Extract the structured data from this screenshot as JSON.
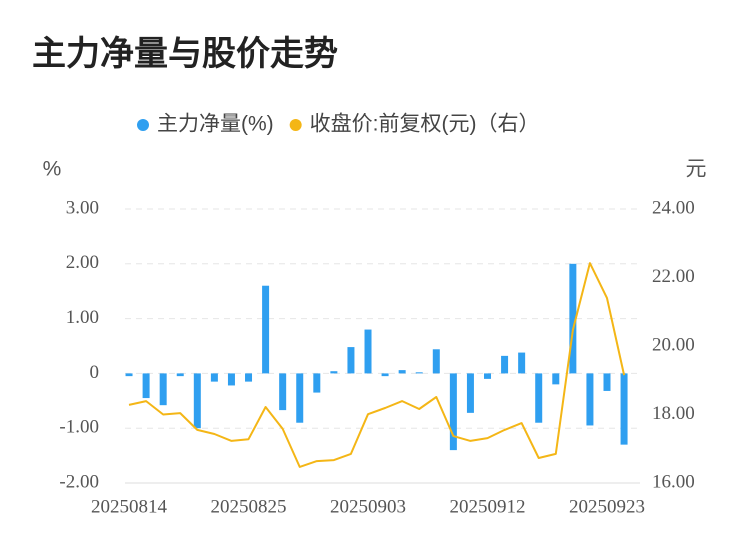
{
  "chart_data": {
    "type": "bar",
    "title": "主力净量与股价走势",
    "ylabel": "%",
    "y2label": "元",
    "categories": [
      "20250814",
      null,
      null,
      null,
      null,
      null,
      null,
      "20250825",
      null,
      null,
      null,
      null,
      null,
      null,
      "20250903",
      null,
      null,
      null,
      null,
      null,
      null,
      "20250912",
      null,
      null,
      null,
      null,
      null,
      null,
      "20250923",
      null
    ],
    "series": [
      {
        "name": "主力净量(%)",
        "type": "bar",
        "color": "#2f9ff0",
        "values": [
          -0.05,
          -0.45,
          -0.58,
          -0.05,
          -1.0,
          -0.15,
          -0.22,
          -0.15,
          1.6,
          -0.67,
          -0.9,
          -0.35,
          0.04,
          0.48,
          0.8,
          -0.05,
          0.06,
          0.02,
          0.44,
          -1.4,
          -0.72,
          -0.1,
          0.32,
          0.38,
          -0.9,
          -0.2,
          2.0,
          -0.95,
          -0.32,
          -1.3
        ]
      },
      {
        "name": "收盘价:前复权(元)（右）",
        "type": "line",
        "axis": "y2",
        "color": "#f4b616",
        "values": [
          18.28,
          18.39,
          18.0,
          18.04,
          17.55,
          17.43,
          17.23,
          17.28,
          18.22,
          17.58,
          16.47,
          16.64,
          16.67,
          16.85,
          18.01,
          18.19,
          18.39,
          18.16,
          18.51,
          17.37,
          17.23,
          17.31,
          17.55,
          17.75,
          16.73,
          16.85,
          20.47,
          22.42,
          21.4,
          19.15
        ]
      }
    ],
    "ylim": [
      -2,
      3
    ],
    "yticks": [
      {
        "value": -2,
        "label": "-2.00"
      },
      {
        "value": -1,
        "label": "-1.00"
      },
      0,
      {
        "value": 1,
        "label": "1.00"
      },
      {
        "value": 2,
        "label": "2.00"
      },
      {
        "value": 3,
        "label": "3.00"
      }
    ],
    "y2lim": [
      16,
      24
    ],
    "y2ticks": [
      {
        "value": 16,
        "label": "16.00"
      },
      {
        "value": 18,
        "label": "18.00"
      },
      {
        "value": 20,
        "label": "20.00"
      },
      {
        "value": 22,
        "label": "22.00"
      },
      {
        "value": 24,
        "label": "24.00"
      }
    ],
    "grid": true
  }
}
